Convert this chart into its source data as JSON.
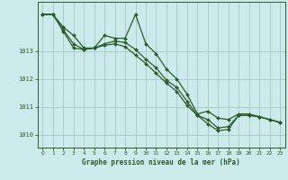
{
  "title": "Graphe pression niveau de la mer (hPa)",
  "bg_color": "#cceaea",
  "line_color": "#2d5a2d",
  "grid_color": "#aacccc",
  "ylim": [
    1009.55,
    1014.75
  ],
  "xlim": [
    -0.5,
    23.5
  ],
  "yticks": [
    1010,
    1011,
    1012,
    1013
  ],
  "xticks": [
    0,
    1,
    2,
    3,
    4,
    5,
    6,
    7,
    8,
    9,
    10,
    11,
    12,
    13,
    14,
    15,
    16,
    17,
    18,
    19,
    20,
    21,
    22,
    23
  ],
  "series1": [
    1014.3,
    1014.3,
    1013.85,
    1013.55,
    1013.1,
    1013.1,
    1013.55,
    1013.45,
    1013.45,
    1014.3,
    1013.25,
    1012.9,
    1012.35,
    1012.0,
    1011.45,
    1010.75,
    1010.85,
    1010.6,
    1010.55,
    1010.75,
    1010.75,
    1010.65,
    1010.55,
    1010.45
  ],
  "series2": [
    1014.3,
    1014.3,
    1013.7,
    1013.1,
    1013.05,
    1013.1,
    1013.2,
    1013.25,
    1013.15,
    1012.85,
    1012.55,
    1012.2,
    1011.85,
    1011.55,
    1011.05,
    1010.7,
    1010.4,
    1010.15,
    1010.2,
    1010.7,
    1010.7,
    1010.65,
    1010.55,
    1010.45
  ],
  "series3": [
    1014.3,
    1014.3,
    1013.75,
    1013.25,
    1013.05,
    1013.1,
    1013.25,
    1013.35,
    1013.3,
    1013.05,
    1012.7,
    1012.4,
    1011.95,
    1011.7,
    1011.2,
    1010.7,
    1010.55,
    1010.25,
    1010.3,
    1010.7,
    1010.7,
    1010.65,
    1010.55,
    1010.45
  ]
}
